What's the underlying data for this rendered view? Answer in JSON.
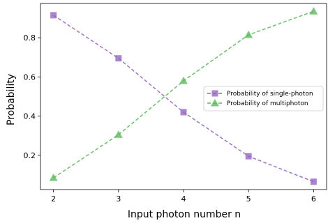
{
  "chart_data": {
    "type": "line",
    "title": "",
    "xlabel": "Input photon number n",
    "ylabel": "Probability",
    "x": [
      2,
      3,
      4,
      5,
      6
    ],
    "xlim": [
      1.8,
      6.2
    ],
    "ylim": [
      0.025,
      0.975
    ],
    "xticks": [
      2,
      3,
      4,
      5,
      6
    ],
    "yticks": [
      0.2,
      0.4,
      0.6,
      0.8
    ],
    "ytick_labels": [
      "0.2",
      "0.4",
      "0.6",
      "0.8"
    ],
    "grid": false,
    "legend_position": "center-right",
    "series": [
      {
        "name": "Probability of single-photon",
        "values": [
          0.915,
          0.695,
          0.42,
          0.195,
          0.065
        ],
        "color": "#9467bd",
        "marker": "square",
        "linestyle": "dashed"
      },
      {
        "name": "Probability of multiphoton",
        "values": [
          0.085,
          0.305,
          0.58,
          0.815,
          0.935
        ],
        "color": "#5cb85c",
        "marker": "triangle",
        "linestyle": "dashed"
      }
    ]
  }
}
